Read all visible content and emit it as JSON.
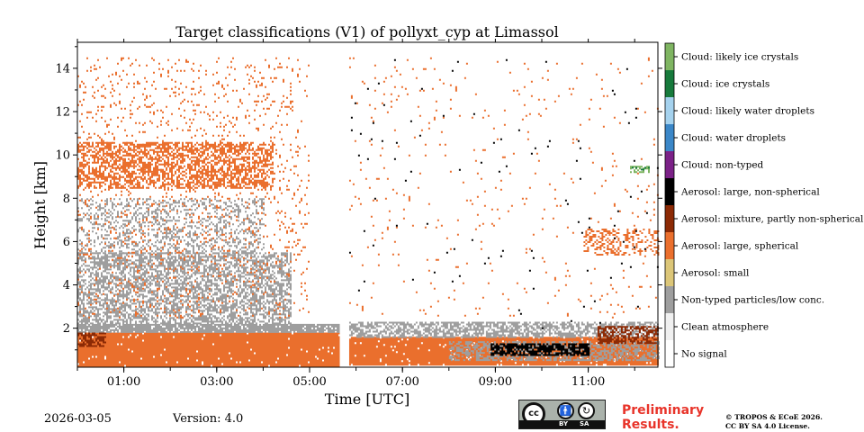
{
  "chart_data": {
    "type": "heatmap",
    "title": "Target classifications (V1) of pollyxt_cyp at Limassol",
    "xlabel": "Time [UTC]",
    "ylabel": "Height [km]",
    "xlim_hours": [
      0.0,
      12.5
    ],
    "ylim_km": [
      0.2,
      15.2
    ],
    "x_ticks": [
      {
        "value": 1,
        "label": "01:00"
      },
      {
        "value": 3,
        "label": "03:00"
      },
      {
        "value": 5,
        "label": "05:00"
      },
      {
        "value": 7,
        "label": "07:00"
      },
      {
        "value": 9,
        "label": "09:00"
      },
      {
        "value": 11,
        "label": "11:00"
      }
    ],
    "y_ticks": [
      {
        "value": 2,
        "label": "2"
      },
      {
        "value": 4,
        "label": "4"
      },
      {
        "value": 6,
        "label": "6"
      },
      {
        "value": 8,
        "label": "8"
      },
      {
        "value": 10,
        "label": "10"
      },
      {
        "value": 12,
        "label": "12"
      },
      {
        "value": 14,
        "label": "14"
      }
    ],
    "classes": [
      {
        "code": 0,
        "label": "No signal",
        "color": "#ffffff"
      },
      {
        "code": 1,
        "label": "Clean atmosphere",
        "color": "#f0f0f0"
      },
      {
        "code": 2,
        "label": "Non-typed particles/low conc.",
        "color": "#9e9e9e"
      },
      {
        "code": 3,
        "label": "Aerosol: small",
        "color": "#dcc678"
      },
      {
        "code": 4,
        "label": "Aerosol: large, spherical",
        "color": "#ea6f2d"
      },
      {
        "code": 5,
        "label": "Aerosol: mixture, partly non-spherical",
        "color": "#8c2a05"
      },
      {
        "code": 6,
        "label": "Aerosol: large, non-spherical",
        "color": "#000000"
      },
      {
        "code": 7,
        "label": "Cloud: non-typed",
        "color": "#7b2187"
      },
      {
        "code": 8,
        "label": "Cloud: water droplets",
        "color": "#3b87c8"
      },
      {
        "code": 9,
        "label": "Cloud: likely water droplets",
        "color": "#a5d2ee"
      },
      {
        "code": 10,
        "label": "Cloud: ice crystals",
        "color": "#177a3c"
      },
      {
        "code": 11,
        "label": "Cloud: likely ice crystals",
        "color": "#7fb562"
      }
    ],
    "data_gap_hours": [
      5.65,
      5.85
    ],
    "features": [
      {
        "class": 4,
        "t_start": 0.0,
        "t_end": 5.65,
        "h_bottom": 0.3,
        "h_top": 1.8,
        "density": 0.97
      },
      {
        "class": 4,
        "t_start": 5.85,
        "t_end": 12.5,
        "h_bottom": 0.3,
        "h_top": 1.6,
        "density": 0.95
      },
      {
        "class": 2,
        "t_start": 0.0,
        "t_end": 5.65,
        "h_bottom": 1.8,
        "h_top": 2.2,
        "density": 0.9
      },
      {
        "class": 2,
        "t_start": 0.0,
        "t_end": 4.6,
        "h_bottom": 2.2,
        "h_top": 5.5,
        "density": 0.55
      },
      {
        "class": 2,
        "t_start": 0.0,
        "t_end": 4.0,
        "h_bottom": 5.5,
        "h_top": 8.0,
        "density": 0.3
      },
      {
        "class": 2,
        "t_start": 5.85,
        "t_end": 12.5,
        "h_bottom": 1.6,
        "h_top": 2.3,
        "density": 0.6
      },
      {
        "class": 2,
        "t_start": 8.0,
        "t_end": 12.5,
        "h_bottom": 0.5,
        "h_top": 1.4,
        "density": 0.5
      },
      {
        "class": 4,
        "t_start": 0.0,
        "t_end": 4.2,
        "h_bottom": 8.5,
        "h_top": 10.6,
        "density": 0.55
      },
      {
        "class": 4,
        "t_start": 0.0,
        "t_end": 5.0,
        "h_bottom": 2.5,
        "h_top": 14.5,
        "density": 0.07
      },
      {
        "class": 4,
        "t_start": 5.85,
        "t_end": 12.5,
        "h_bottom": 2.5,
        "h_top": 14.5,
        "density": 0.015
      },
      {
        "class": 4,
        "t_start": 10.9,
        "t_end": 12.5,
        "h_bottom": 5.4,
        "h_top": 6.6,
        "density": 0.35
      },
      {
        "class": 5,
        "t_start": 11.2,
        "t_end": 12.5,
        "h_bottom": 1.3,
        "h_top": 2.1,
        "density": 0.55
      },
      {
        "class": 5,
        "t_start": 0.0,
        "t_end": 0.6,
        "h_bottom": 1.2,
        "h_top": 1.8,
        "density": 0.6
      },
      {
        "class": 6,
        "t_start": 8.9,
        "t_end": 11.0,
        "h_bottom": 0.8,
        "h_top": 1.3,
        "density": 0.75
      },
      {
        "class": 6,
        "t_start": 5.85,
        "t_end": 12.5,
        "h_bottom": 2.0,
        "h_top": 14.5,
        "density": 0.004
      },
      {
        "class": 11,
        "t_start": 11.9,
        "t_end": 12.3,
        "h_bottom": 9.2,
        "h_top": 9.5,
        "density": 0.6
      },
      {
        "class": 10,
        "t_start": 11.9,
        "t_end": 12.3,
        "h_bottom": 9.3,
        "h_top": 9.45,
        "density": 0.3
      }
    ]
  },
  "footer": {
    "date": "2026-03-05",
    "version": "Version: 4.0",
    "preliminary": "Preliminary Results.",
    "copyright_line1": "© TROPOS & ECoE 2026.",
    "copyright_line2": "CC BY SA 4.0 License.",
    "license_badge": {
      "cc": "cc",
      "by": "BY",
      "sa": "SA"
    }
  }
}
